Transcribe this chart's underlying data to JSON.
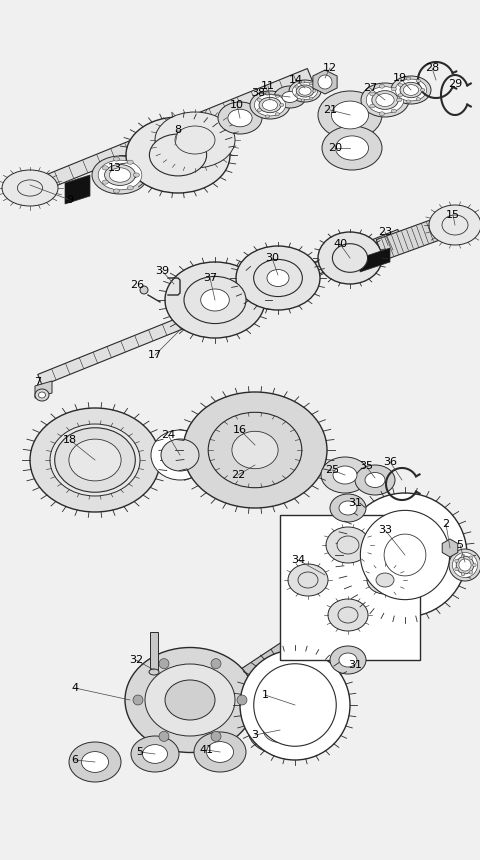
{
  "bg_color": "#f0f0f0",
  "line_color": "#2a2a2a",
  "label_color": "#000000",
  "fig_width": 4.8,
  "fig_height": 8.6,
  "dpi": 100,
  "xmin": 0,
  "xmax": 480,
  "ymin": 0,
  "ymax": 860
}
